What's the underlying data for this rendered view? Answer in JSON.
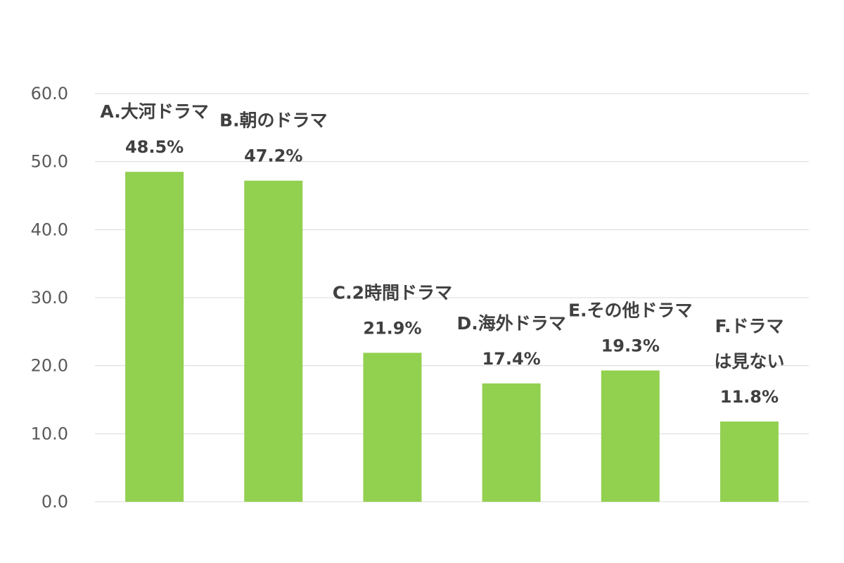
{
  "chart_data": {
    "type": "bar",
    "categories": [
      "A.大河ドラマ",
      "B.朝のドラマ",
      "C.2時間ドラマ",
      "D.海外ドラマ",
      "E.その他ドラマ",
      "F.ドラマ\nは見ない"
    ],
    "values": [
      48.5,
      47.2,
      21.9,
      17.4,
      19.3,
      11.8
    ],
    "data_labels": [
      "48.5%",
      "47.2%",
      "21.9%",
      "17.4%",
      "19.3%",
      "11.8%"
    ],
    "y_ticks": [
      "0.0",
      "10.0",
      "20.0",
      "30.0",
      "40.0",
      "50.0",
      "60.0"
    ],
    "ylim": [
      0,
      60
    ],
    "grid": true,
    "legend": "none",
    "bar_color": "#92d050",
    "title": "",
    "xlabel": "",
    "ylabel": ""
  }
}
